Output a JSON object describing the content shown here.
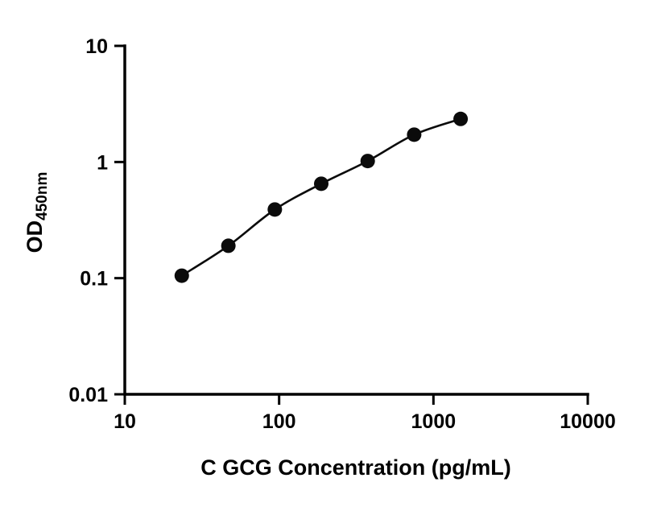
{
  "figure": {
    "background_color": "#ffffff",
    "axis_color": "#000000"
  },
  "chart_data": {
    "type": "scatter",
    "title": "",
    "xlabel": "C GCG Concentration (pg/mL)",
    "ylabel_main": "OD",
    "ylabel_sub": "450nm",
    "x_scale": "log",
    "y_scale": "log",
    "xlim": [
      10,
      10000
    ],
    "ylim": [
      0.01,
      10
    ],
    "x_ticks": [
      10,
      100,
      1000,
      10000
    ],
    "x_tick_labels": [
      "10",
      "100",
      "1000",
      "10000"
    ],
    "y_ticks": [
      10,
      1,
      0.1,
      0.01
    ],
    "y_tick_labels": [
      "10",
      "1",
      "0.1",
      "0.01"
    ],
    "grid": false,
    "legend": false,
    "series": [
      {
        "x": [
          23.4,
          46.9,
          93.8,
          187.5,
          375,
          750,
          1500
        ],
        "y": [
          0.105,
          0.19,
          0.39,
          0.65,
          1.02,
          1.72,
          2.35
        ],
        "marker": "circle",
        "marker_color": "#0b0b0b",
        "line_color": "#0b0b0b"
      }
    ]
  }
}
